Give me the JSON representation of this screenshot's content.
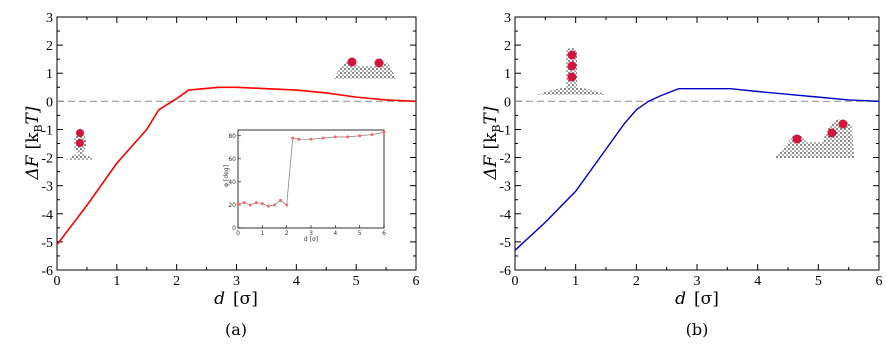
{
  "chart_data": [
    {
      "type": "line",
      "panel_caption": "(a)",
      "ylabel": "ΔF  [k_B T]",
      "ylabel_parts": {
        "main": "ΔF",
        "unit_open": "[k",
        "unit_sub": "B",
        "unit_close": "T]"
      },
      "xlabel": "d  [σ]",
      "xlabel_parts": {
        "main": "d",
        "unit": "[σ]"
      },
      "xlim": [
        0,
        6
      ],
      "ylim": [
        -6,
        3
      ],
      "xticks": [
        "0",
        "1",
        "2",
        "3",
        "4",
        "5",
        "6"
      ],
      "yticks": [
        "-6",
        "-5",
        "-4",
        "-3",
        "-2",
        "-1",
        "0",
        "1",
        "2",
        "3"
      ],
      "reference_line": 0,
      "series": [
        {
          "color": "#ff0000",
          "x": [
            0,
            0.5,
            1.0,
            1.5,
            1.7,
            2.0,
            2.2,
            2.7,
            3.0,
            3.5,
            4.0,
            4.5,
            5.0,
            5.5,
            6.0
          ],
          "y": [
            -5.1,
            -3.7,
            -2.2,
            -1.0,
            -0.3,
            0.1,
            0.4,
            0.5,
            0.5,
            0.45,
            0.4,
            0.3,
            0.15,
            0.05,
            0.0
          ]
        }
      ],
      "inset": {
        "type": "line",
        "ylabel": "φ [deg]",
        "xlabel": "d [σ]",
        "xlim": [
          0,
          6
        ],
        "ylim": [
          0,
          85
        ],
        "xticks": [
          "0",
          "1",
          "2",
          "3",
          "4",
          "5",
          "6"
        ],
        "yticks": [
          "0",
          "20",
          "40",
          "60",
          "80"
        ],
        "series": [
          {
            "color": "#888888",
            "marker_color": "#ff6666",
            "x": [
              0,
              0.25,
              0.5,
              0.75,
              1.0,
              1.25,
              1.5,
              1.75,
              2.0,
              2.25,
              2.5,
              3.0,
              3.5,
              4.0,
              4.5,
              5.0,
              5.5,
              6.0
            ],
            "y": [
              21,
              22,
              20,
              22,
              21,
              19,
              20,
              24,
              20,
              78,
              77,
              77,
              78,
              79,
              79,
              80,
              81,
              83
            ]
          }
        ]
      }
    },
    {
      "type": "line",
      "panel_caption": "(b)",
      "ylabel": "ΔF  [k_B T]",
      "ylabel_parts": {
        "main": "ΔF",
        "unit_open": "[k",
        "unit_sub": "B",
        "unit_close": "T]"
      },
      "xlabel": "d  [σ]",
      "xlabel_parts": {
        "main": "d",
        "unit": "[σ]"
      },
      "xlim": [
        0,
        6
      ],
      "ylim": [
        -6,
        3
      ],
      "xticks": [
        "0",
        "1",
        "2",
        "3",
        "4",
        "5",
        "6"
      ],
      "yticks": [
        "-6",
        "-5",
        "-4",
        "-3",
        "-2",
        "-1",
        "0",
        "1",
        "2",
        "3"
      ],
      "reference_line": 0,
      "series": [
        {
          "color": "#0000cc",
          "x": [
            0,
            0.5,
            1.0,
            1.5,
            1.8,
            2.0,
            2.2,
            2.4,
            2.7,
            3.0,
            3.55,
            4.0,
            4.5,
            5.0,
            5.5,
            6.0
          ],
          "y": [
            -5.3,
            -4.3,
            -3.2,
            -1.7,
            -0.8,
            -0.3,
            0.0,
            0.2,
            0.45,
            0.45,
            0.45,
            0.35,
            0.25,
            0.15,
            0.05,
            0.0
          ]
        }
      ]
    }
  ]
}
